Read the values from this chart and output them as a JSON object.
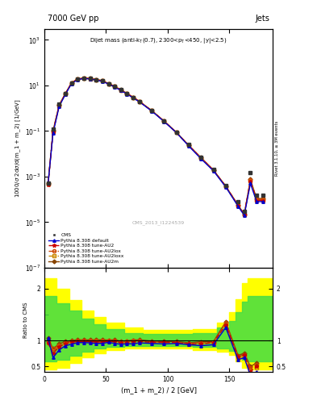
{
  "title_left": "7000 GeV pp",
  "title_right": "Jets",
  "ylabel_main": "1000/σ 2dσ/d(m_1 + m_2) [1/GeV]",
  "ylabel_ratio": "Ratio to CMS",
  "xlabel": "(m_1 + m_2) / 2 [GeV]",
  "xlim": [
    0,
    185
  ],
  "ylim_main": [
    1e-07,
    3000.0
  ],
  "ylim_ratio": [
    0.4,
    2.4
  ],
  "x_data": [
    3,
    7,
    12,
    17,
    22,
    27,
    32,
    37,
    42,
    47,
    52,
    57,
    62,
    67,
    72,
    77,
    87,
    97,
    107,
    117,
    127,
    137,
    147,
    157,
    162,
    167,
    172,
    177
  ],
  "cms_y": [
    0.0005,
    0.12,
    1.5,
    4.5,
    13,
    19,
    21,
    20,
    18,
    16,
    12,
    9,
    6.5,
    4.5,
    3.0,
    2.0,
    0.8,
    0.28,
    0.09,
    0.025,
    0.007,
    0.002,
    0.0004,
    8e-05,
    3e-05,
    0.0015,
    0.00015,
    0.00015
  ],
  "pythia_default_y": [
    0.0005,
    0.08,
    1.2,
    4.0,
    12,
    18,
    20,
    19,
    17,
    15,
    11.5,
    8.5,
    6.0,
    4.2,
    2.8,
    1.9,
    0.75,
    0.26,
    0.085,
    0.022,
    0.006,
    0.0018,
    0.00035,
    5e-05,
    2e-05,
    0.0005,
    8e-05,
    8e-05
  ],
  "tune_au2_y": [
    0.00045,
    0.09,
    1.3,
    4.2,
    12.5,
    18.5,
    20.5,
    19.5,
    17.5,
    15.5,
    11.8,
    8.8,
    6.2,
    4.3,
    2.9,
    1.95,
    0.77,
    0.27,
    0.086,
    0.023,
    0.0065,
    0.0019,
    0.00037,
    5.5e-05,
    2.2e-05,
    0.0006,
    9e-05,
    9e-05
  ],
  "tune_au2lox_y": [
    0.00048,
    0.1,
    1.35,
    4.3,
    12.8,
    19.0,
    21.0,
    20.0,
    18.0,
    16.0,
    12.0,
    9.0,
    6.3,
    4.4,
    3.0,
    2.0,
    0.78,
    0.27,
    0.087,
    0.023,
    0.0067,
    0.0019,
    0.00038,
    5.5e-05,
    2.2e-05,
    0.0007,
    0.0001,
    0.0001
  ],
  "tune_au2loxx_y": [
    0.00046,
    0.095,
    1.32,
    4.25,
    12.6,
    18.7,
    20.7,
    19.7,
    17.7,
    15.7,
    11.9,
    8.9,
    6.25,
    4.35,
    2.95,
    1.97,
    0.775,
    0.268,
    0.086,
    0.023,
    0.0066,
    0.0019,
    0.000375,
    5.2e-05,
    2.1e-05,
    0.00065,
    9.5e-05,
    9.5e-05
  ],
  "tune_au2m_y": [
    0.0005,
    0.1,
    1.4,
    4.4,
    13.0,
    19.2,
    21.2,
    20.2,
    18.2,
    16.2,
    12.1,
    9.1,
    6.4,
    4.45,
    3.02,
    2.02,
    0.79,
    0.275,
    0.088,
    0.0235,
    0.0068,
    0.00195,
    0.000385,
    5.6e-05,
    2.25e-05,
    0.00075,
    0.00011,
    0.00011
  ],
  "ratio_x": [
    3,
    7,
    12,
    17,
    22,
    27,
    32,
    37,
    42,
    47,
    52,
    57,
    62,
    67,
    72,
    77,
    87,
    97,
    107,
    117,
    127,
    137,
    147,
    157,
    162,
    167,
    172
  ],
  "ratio_default": [
    1.05,
    0.67,
    0.82,
    0.9,
    0.93,
    0.96,
    0.96,
    0.955,
    0.945,
    0.945,
    0.965,
    0.945,
    0.928,
    0.938,
    0.938,
    0.955,
    0.945,
    0.935,
    0.944,
    0.92,
    0.9,
    0.92,
    1.25,
    0.63,
    0.67,
    0.33,
    0.4
  ],
  "ratio_au2": [
    0.95,
    0.75,
    0.88,
    0.94,
    0.97,
    0.98,
    0.985,
    0.978,
    0.972,
    0.972,
    0.982,
    0.98,
    0.957,
    0.958,
    0.97,
    0.978,
    0.966,
    0.967,
    0.958,
    0.935,
    0.935,
    0.96,
    1.3,
    0.69,
    0.73,
    0.4,
    0.5
  ],
  "ratio_au2lox": [
    1.0,
    0.84,
    0.91,
    0.958,
    0.988,
    1.005,
    1.005,
    1.003,
    1.002,
    1.003,
    1.003,
    1.003,
    0.972,
    0.98,
    1.002,
    1.003,
    0.978,
    0.967,
    0.968,
    0.94,
    0.963,
    0.96,
    1.35,
    0.69,
    0.73,
    0.47,
    0.53
  ],
  "ratio_au2loxx": [
    0.97,
    0.8,
    0.895,
    0.946,
    0.972,
    0.987,
    0.988,
    0.987,
    0.985,
    0.984,
    0.994,
    0.991,
    0.964,
    0.969,
    0.986,
    0.987,
    0.972,
    0.96,
    0.958,
    0.932,
    0.948,
    0.952,
    1.32,
    0.66,
    0.7,
    0.43,
    0.47
  ],
  "ratio_au2m": [
    1.05,
    0.84,
    0.94,
    0.98,
    1.002,
    1.014,
    1.012,
    1.013,
    1.013,
    1.015,
    1.01,
    1.013,
    0.988,
    0.991,
    1.01,
    1.013,
    0.99,
    0.984,
    0.98,
    0.955,
    0.975,
    0.978,
    1.36,
    0.71,
    0.76,
    0.5,
    0.57
  ],
  "yellow_band_x": [
    0,
    5,
    10,
    20,
    30,
    40,
    50,
    65,
    80,
    100,
    120,
    140,
    150,
    155,
    160,
    165,
    175,
    185
  ],
  "yellow_band_lo": [
    0.45,
    0.45,
    0.48,
    0.57,
    0.68,
    0.76,
    0.82,
    0.85,
    0.85,
    0.85,
    0.82,
    0.78,
    0.72,
    0.6,
    0.48,
    0.45,
    0.45,
    0.45
  ],
  "yellow_band_hi": [
    2.2,
    2.2,
    2.0,
    1.78,
    1.58,
    1.45,
    1.35,
    1.25,
    1.2,
    1.2,
    1.22,
    1.35,
    1.55,
    1.8,
    2.1,
    2.2,
    2.2,
    2.2
  ],
  "green_band_x": [
    0,
    5,
    10,
    20,
    30,
    40,
    50,
    65,
    80,
    100,
    120,
    140,
    150,
    155,
    160,
    165,
    175,
    185
  ],
  "green_band_lo": [
    0.6,
    0.6,
    0.63,
    0.7,
    0.78,
    0.84,
    0.88,
    0.9,
    0.9,
    0.9,
    0.88,
    0.85,
    0.8,
    0.72,
    0.63,
    0.6,
    0.6,
    0.6
  ],
  "green_band_hi": [
    1.85,
    1.85,
    1.72,
    1.58,
    1.42,
    1.32,
    1.22,
    1.14,
    1.12,
    1.12,
    1.14,
    1.25,
    1.38,
    1.55,
    1.75,
    1.85,
    1.85,
    1.85
  ],
  "right_axis_label": "Rivet 3.1.10, ≥ 3M events",
  "cms_label": "CMS_2013_I1224539",
  "colors": {
    "cms": "#333333",
    "default": "#0000cc",
    "au2": "#cc0000",
    "au2lox": "#cc4400",
    "au2loxx": "#cc8800",
    "au2m": "#884400"
  }
}
